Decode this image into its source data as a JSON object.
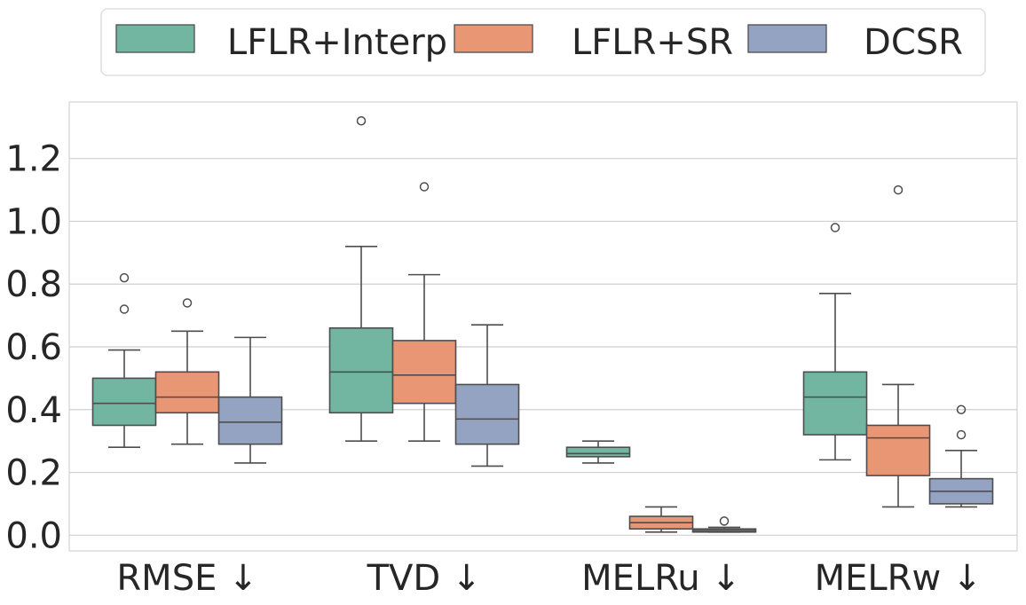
{
  "chart_data": {
    "type": "box",
    "title": "",
    "xlabel": "",
    "ylabel": "",
    "ylim": [
      -0.05,
      1.38
    ],
    "yticks": [
      0.0,
      0.2,
      0.4,
      0.6,
      0.8,
      1.0,
      1.2
    ],
    "ytick_labels": [
      "0.0",
      "0.2",
      "0.4",
      "0.6",
      "0.8",
      "1.0",
      "1.2"
    ],
    "grid": true,
    "legend_position": "top-center",
    "categories": [
      "RMSE ↓",
      "TVD ↓",
      "MELRu ↓",
      "MELRw ↓"
    ],
    "series": [
      {
        "name": "LFLR+Interp",
        "color": "#72b6a1",
        "boxes": [
          {
            "whislo": 0.28,
            "q1": 0.35,
            "med": 0.42,
            "q3": 0.5,
            "whishi": 0.59,
            "fliers": [
              0.72,
              0.82
            ]
          },
          {
            "whislo": 0.3,
            "q1": 0.39,
            "med": 0.52,
            "q3": 0.66,
            "whishi": 0.92,
            "fliers": [
              1.32
            ]
          },
          {
            "whislo": 0.23,
            "q1": 0.25,
            "med": 0.26,
            "q3": 0.28,
            "whishi": 0.3,
            "fliers": []
          },
          {
            "whislo": 0.24,
            "q1": 0.32,
            "med": 0.44,
            "q3": 0.52,
            "whishi": 0.77,
            "fliers": [
              0.98
            ]
          }
        ]
      },
      {
        "name": "LFLR+SR",
        "color": "#e99675",
        "boxes": [
          {
            "whislo": 0.29,
            "q1": 0.39,
            "med": 0.44,
            "q3": 0.52,
            "whishi": 0.65,
            "fliers": [
              0.74
            ]
          },
          {
            "whislo": 0.3,
            "q1": 0.42,
            "med": 0.51,
            "q3": 0.62,
            "whishi": 0.83,
            "fliers": [
              1.11
            ]
          },
          {
            "whislo": 0.01,
            "q1": 0.02,
            "med": 0.04,
            "q3": 0.06,
            "whishi": 0.09,
            "fliers": []
          },
          {
            "whislo": 0.09,
            "q1": 0.19,
            "med": 0.31,
            "q3": 0.35,
            "whishi": 0.48,
            "fliers": [
              1.1
            ]
          }
        ]
      },
      {
        "name": "DCSR",
        "color": "#95a3c3",
        "boxes": [
          {
            "whislo": 0.23,
            "q1": 0.29,
            "med": 0.36,
            "q3": 0.44,
            "whishi": 0.63,
            "fliers": []
          },
          {
            "whislo": 0.22,
            "q1": 0.29,
            "med": 0.37,
            "q3": 0.48,
            "whishi": 0.67,
            "fliers": []
          },
          {
            "whislo": 0.01,
            "q1": 0.01,
            "med": 0.015,
            "q3": 0.02,
            "whishi": 0.025,
            "fliers": [
              0.045
            ]
          },
          {
            "whislo": 0.09,
            "q1": 0.1,
            "med": 0.14,
            "q3": 0.18,
            "whishi": 0.27,
            "fliers": [
              0.32,
              0.4
            ]
          }
        ]
      }
    ]
  }
}
